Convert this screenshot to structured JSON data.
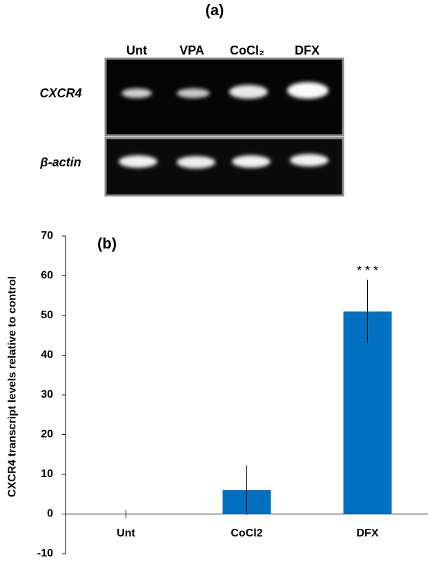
{
  "gel": {
    "title": "(a)",
    "lanes": [
      "Unt",
      "VPA",
      "CoCl₂",
      "DFX"
    ],
    "rows": [
      "CXCR4",
      "β-actin"
    ]
  },
  "chart_data": {
    "type": "bar",
    "title": "(b)",
    "ylabel": "CXCR4 transcript levels relative to control",
    "categories": [
      "Unt",
      "CoCl2",
      "DFX"
    ],
    "values": [
      0,
      6,
      51
    ],
    "errors": [
      1,
      6.2,
      8
    ],
    "color": "#0070c0",
    "annotation": "* * *",
    "ylim": [
      -10,
      70
    ],
    "yticks": [
      -10,
      0,
      10,
      20,
      30,
      40,
      50,
      60,
      70
    ]
  }
}
